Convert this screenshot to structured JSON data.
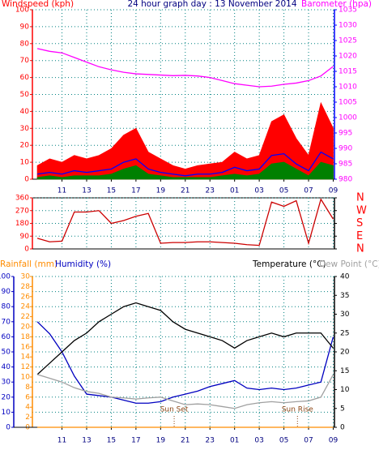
{
  "chart_data": [
    {
      "type": "line",
      "title": "24 hour graph day : 13 November 2014",
      "y_label": "Windspeed (kph)",
      "y2_label": "Barometer (hpa)",
      "x": [
        9,
        10,
        11,
        12,
        13,
        14,
        15,
        16,
        17,
        18,
        19,
        20,
        21,
        22,
        23,
        24,
        25,
        26,
        27,
        28,
        29,
        30,
        31,
        32,
        33
      ],
      "xlim": [
        8.6,
        33.1
      ],
      "xticks": [
        11,
        13,
        15,
        17,
        19,
        21,
        23,
        {
          "value": 25,
          "label": "01"
        },
        {
          "value": 27,
          "label": "03"
        },
        {
          "value": 29,
          "label": "05"
        },
        {
          "value": 31,
          "label": "07"
        },
        {
          "value": 33,
          "label": "09"
        }
      ],
      "ylim": [
        0,
        100
      ],
      "yticks": [
        0,
        10,
        20,
        30,
        40,
        50,
        60,
        70,
        80,
        90,
        100
      ],
      "y2lim": [
        980,
        1035
      ],
      "y2ticks": [
        980,
        985,
        990,
        995,
        1000,
        1005,
        1010,
        1015,
        1020,
        1025,
        1030,
        1035
      ],
      "grid": true,
      "series": [
        {
          "color": "#ff0000",
          "fill": true,
          "values": [
            8,
            12,
            10,
            14,
            12,
            14,
            18,
            26,
            30,
            16,
            12,
            8,
            6,
            8,
            9,
            10,
            16,
            12,
            14,
            34,
            38,
            24,
            14,
            45,
            30
          ]
        },
        {
          "color": "#0000ff",
          "fill": false,
          "values": [
            3,
            4,
            3,
            5,
            4,
            5,
            6,
            10,
            12,
            6,
            4,
            3,
            2,
            3,
            3,
            4,
            7,
            5,
            6,
            14,
            15,
            9,
            5,
            16,
            12
          ]
        },
        {
          "color": "#008000",
          "fill": true,
          "values": [
            1,
            2,
            1,
            2,
            2,
            2,
            3,
            6,
            8,
            3,
            2,
            1,
            1,
            1,
            1,
            2,
            3,
            2,
            3,
            9,
            10,
            6,
            2,
            10,
            8
          ]
        },
        {
          "color": "#ff00ff",
          "fill": false,
          "axis": "y2",
          "values": [
            1022.4,
            1021.5,
            1021,
            1019.5,
            1018,
            1016.5,
            1015.5,
            1014.7,
            1014.2,
            1014,
            1013.8,
            1013.6,
            1013.7,
            1013.5,
            1013,
            1012,
            1011,
            1010.5,
            1010,
            1010.2,
            1010.8,
            1011.2,
            1012,
            1013.5,
            1016.6
          ]
        }
      ]
    },
    {
      "type": "line",
      "x": [
        9,
        10,
        11,
        12,
        13,
        14,
        15,
        16,
        17,
        18,
        19,
        20,
        21,
        22,
        23,
        24,
        25,
        26,
        27,
        28,
        29,
        30,
        31,
        32,
        33
      ],
      "xlim": [
        8.6,
        33.1
      ],
      "ylim": [
        0,
        360
      ],
      "yticks": [
        0,
        90,
        180,
        270,
        360
      ],
      "y2lim": [
        0,
        360
      ],
      "y2ticks": [
        {
          "value": 360,
          "label": "N"
        },
        {
          "value": 270,
          "label": "W"
        },
        {
          "value": 180,
          "label": "S"
        },
        {
          "value": 90,
          "label": "E"
        },
        {
          "value": 0,
          "label": "N"
        }
      ],
      "grid": true,
      "series": [
        {
          "color": "#cc0000",
          "values": [
            75,
            50,
            55,
            260,
            260,
            270,
            180,
            200,
            230,
            250,
            40,
            45,
            45,
            50,
            50,
            45,
            40,
            30,
            25,
            330,
            300,
            340,
            40,
            350,
            210
          ]
        }
      ]
    },
    {
      "type": "line",
      "x": [
        9,
        10,
        11,
        12,
        13,
        14,
        15,
        16,
        17,
        18,
        19,
        20,
        21,
        22,
        23,
        24,
        25,
        26,
        27,
        28,
        29,
        30,
        31,
        32,
        33
      ],
      "xlim": [
        8.6,
        33.1
      ],
      "xticks": [
        11,
        13,
        15,
        17,
        19,
        21,
        23,
        {
          "value": 25,
          "label": "01"
        },
        {
          "value": 27,
          "label": "03"
        },
        {
          "value": 29,
          "label": "05"
        },
        {
          "value": 31,
          "label": "07"
        },
        {
          "value": 33,
          "label": "09"
        }
      ],
      "ylim": [
        0,
        100
      ],
      "yticks": [
        0,
        10,
        20,
        30,
        40,
        50,
        60,
        70,
        80,
        90,
        100
      ],
      "y3lim": [
        0,
        30
      ],
      "y3ticks": [
        0,
        2,
        4,
        6,
        8,
        10,
        12,
        14,
        16,
        18,
        20,
        22,
        24,
        26,
        28,
        30
      ],
      "y2lim": [
        0,
        40
      ],
      "y2ticks": [
        0,
        5,
        10,
        15,
        20,
        25,
        30,
        35,
        40
      ],
      "grid": true,
      "series": [
        {
          "name": "Rainfall (mm)",
          "color": "#ff8c00",
          "axis": "y3",
          "values": [
            0,
            0,
            0,
            0,
            0,
            0,
            0,
            0,
            0,
            0,
            0,
            0,
            0,
            0,
            0,
            0,
            0,
            0,
            0,
            0,
            0,
            0,
            0,
            0,
            0
          ]
        },
        {
          "name": "Humidity (%)",
          "color": "#0000c0",
          "axis": "y",
          "values": [
            70,
            62,
            50,
            34,
            22,
            21,
            20,
            18,
            16,
            16,
            17,
            20,
            22,
            24,
            27,
            29,
            31,
            26,
            25,
            26,
            25,
            26,
            28,
            30,
            60
          ]
        },
        {
          "name": "Temperature (°C)",
          "color": "#000000",
          "axis": "y2",
          "values": [
            14,
            17,
            20,
            23,
            25,
            28,
            30,
            32,
            33,
            32,
            31,
            28,
            26,
            25,
            24,
            23,
            21,
            23,
            24,
            25,
            24,
            25,
            25,
            25,
            21
          ]
        },
        {
          "name": "Dew Point (°C)",
          "color": "#a0a0a0",
          "axis": "y2",
          "values": [
            14,
            13,
            12,
            10.5,
            9.5,
            9,
            8,
            7.8,
            7.5,
            7.8,
            8,
            7,
            6,
            6.2,
            6,
            5.5,
            5,
            6,
            6.5,
            6.8,
            6.5,
            6.8,
            7,
            8,
            14
          ]
        }
      ],
      "annotations": [
        {
          "text": "Sun Set",
          "x": 20.1
        },
        {
          "text": "Sun Rise",
          "x": 30.1
        }
      ]
    }
  ]
}
